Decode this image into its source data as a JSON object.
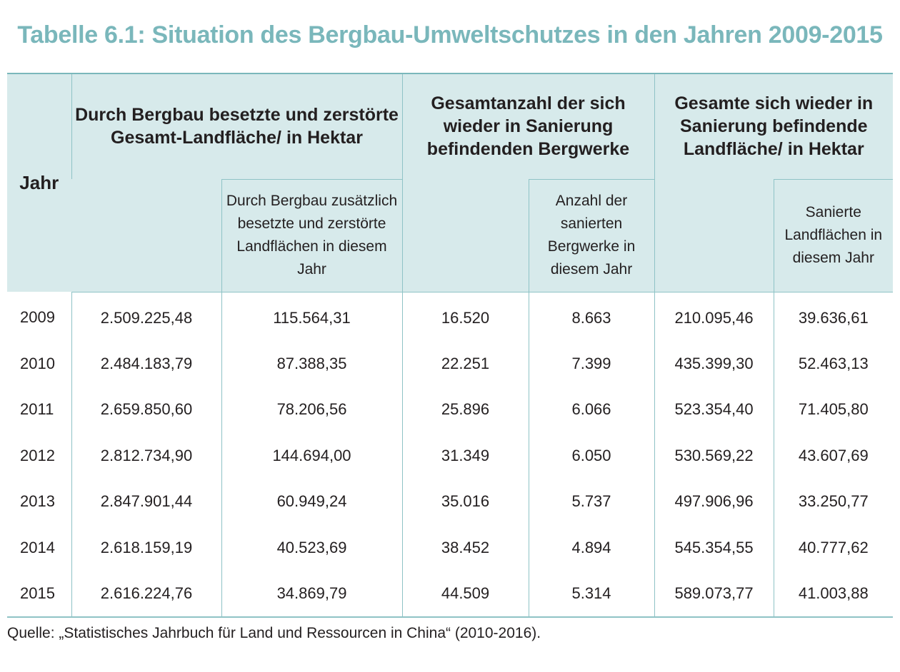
{
  "title": "Tabelle 6.1: Situation des Bergbau-Umweltschutzes in den Jahren 2009-2015",
  "header": {
    "year": "Jahr",
    "group1": "Durch Bergbau besetzte und zerstörte Gesamt-Landfläche/ in Hektar",
    "group1_sub": "Durch Bergbau zusätzlich besetzte und zerstörte Landflächen in diesem Jahr",
    "group2": "Gesamtanzahl der sich wieder in Sanierung befindenden Bergwerke",
    "group2_sub": "Anzahl der sanierten Bergwerke in diesem Jahr",
    "group3": "Gesamte sich wieder in Sanierung befindende Landfläche/ in Hektar",
    "group3_sub": "Sanierte Landflächen in diesem Jahr"
  },
  "rows": [
    [
      "2009",
      "2.509.225,48",
      "115.564,31",
      "16.520",
      "8.663",
      "210.095,46",
      "39.636,61"
    ],
    [
      "2010",
      "2.484.183,79",
      "87.388,35",
      "22.251",
      "7.399",
      "435.399,30",
      "52.463,13"
    ],
    [
      "2011",
      "2.659.850,60",
      "78.206,56",
      "25.896",
      "6.066",
      "523.354,40",
      "71.405,80"
    ],
    [
      "2012",
      "2.812.734,90",
      "144.694,00",
      "31.349",
      "6.050",
      "530.569,22",
      "43.607,69"
    ],
    [
      "2013",
      "2.847.901,44",
      "60.949,24",
      "35.016",
      "5.737",
      "497.906,96",
      "33.250,77"
    ],
    [
      "2014",
      "2.618.159,19",
      "40.523,69",
      "38.452",
      "4.894",
      "545.354,55",
      "40.777,62"
    ],
    [
      "2015",
      "2.616.224,76",
      "34.869,79",
      "44.509",
      "5.314",
      "589.073,77",
      "41.003,88"
    ]
  ],
  "source": "Quelle: „Statistisches Jahrbuch für Land und Ressourcen in China“ (2010-2016)."
}
